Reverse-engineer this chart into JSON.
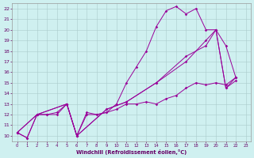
{
  "xlabel": "Windchill (Refroidissement éolien,°C)",
  "bg_color": "#cff0f0",
  "line_color": "#990099",
  "grid_color": "#aacccc",
  "xlim": [
    -0.5,
    23.5
  ],
  "ylim": [
    9.5,
    22.5
  ],
  "xticks": [
    0,
    1,
    2,
    3,
    4,
    5,
    6,
    7,
    8,
    9,
    10,
    11,
    12,
    13,
    14,
    15,
    16,
    17,
    18,
    19,
    20,
    21,
    22,
    23
  ],
  "yticks": [
    10,
    11,
    12,
    13,
    14,
    15,
    16,
    17,
    18,
    19,
    20,
    21,
    22
  ],
  "series1": [
    [
      0,
      10.3
    ],
    [
      1,
      9.8
    ],
    [
      2,
      12.0
    ],
    [
      3,
      12.0
    ],
    [
      4,
      12.0
    ],
    [
      5,
      13.0
    ],
    [
      6,
      10.0
    ],
    [
      7,
      12.2
    ],
    [
      8,
      12.0
    ],
    [
      9,
      12.2
    ],
    [
      10,
      12.5
    ],
    [
      11,
      13.0
    ],
    [
      12,
      13.0
    ],
    [
      13,
      13.2
    ],
    [
      14,
      13.0
    ],
    [
      15,
      13.5
    ],
    [
      16,
      13.8
    ],
    [
      17,
      14.5
    ],
    [
      18,
      15.0
    ],
    [
      19,
      14.8
    ],
    [
      20,
      15.0
    ],
    [
      21,
      14.8
    ],
    [
      22,
      15.5
    ]
  ],
  "series2": [
    [
      0,
      10.3
    ],
    [
      1,
      9.8
    ],
    [
      2,
      12.0
    ],
    [
      3,
      12.0
    ],
    [
      4,
      12.2
    ],
    [
      5,
      13.0
    ],
    [
      6,
      10.0
    ],
    [
      7,
      12.0
    ],
    [
      8,
      12.0
    ],
    [
      9,
      12.2
    ],
    [
      10,
      13.0
    ],
    [
      11,
      15.0
    ],
    [
      12,
      16.5
    ],
    [
      13,
      18.0
    ],
    [
      14,
      20.3
    ],
    [
      15,
      21.8
    ],
    [
      16,
      22.2
    ],
    [
      17,
      21.5
    ],
    [
      18,
      22.0
    ],
    [
      19,
      20.0
    ],
    [
      20,
      20.0
    ],
    [
      21,
      14.5
    ],
    [
      22,
      15.5
    ]
  ],
  "series3": [
    [
      0,
      10.3
    ],
    [
      2,
      12.0
    ],
    [
      5,
      13.0
    ],
    [
      6,
      10.0
    ],
    [
      9,
      12.5
    ],
    [
      11,
      13.2
    ],
    [
      14,
      15.0
    ],
    [
      17,
      17.0
    ],
    [
      19,
      19.0
    ],
    [
      20,
      20.0
    ],
    [
      21,
      18.5
    ],
    [
      22,
      15.5
    ]
  ],
  "series4": [
    [
      0,
      10.3
    ],
    [
      2,
      12.0
    ],
    [
      5,
      13.0
    ],
    [
      6,
      10.0
    ],
    [
      9,
      12.5
    ],
    [
      11,
      13.2
    ],
    [
      14,
      15.0
    ],
    [
      17,
      17.5
    ],
    [
      19,
      18.5
    ],
    [
      20,
      20.0
    ],
    [
      21,
      14.5
    ],
    [
      22,
      15.2
    ]
  ]
}
